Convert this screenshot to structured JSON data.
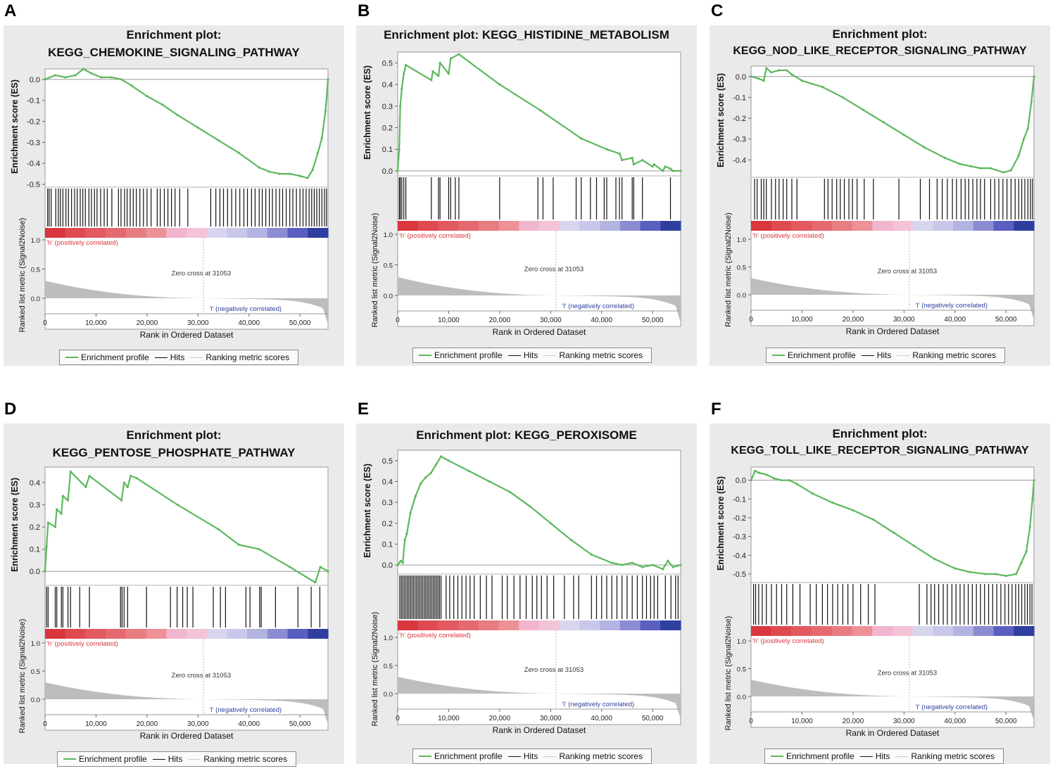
{
  "figure": {
    "x_axis_label": "Rank in Ordered Dataset",
    "es_axis_label": "Enrichment score (ES)",
    "metric_axis_label": "Ranked list metric (Signal2Noise)",
    "pos_label": "'h' (positively correlated)",
    "neg_label": "'l' (negatively correlated)",
    "zero_cross_label": "Zero cross at 31053",
    "legend": {
      "profile": "Enrichment profile",
      "hits": "Hits",
      "ranking": "Ranking metric scores"
    },
    "x_ticks": [
      "0",
      "10,000",
      "20,000",
      "30,000",
      "40,000",
      "50,000"
    ],
    "metric_ticks": [
      "1.0",
      "0.5",
      "0.0"
    ],
    "colors": {
      "profile": "#5cb85c",
      "hits": "#111111",
      "metric": "#bdbdbd",
      "pos": "#d9363e",
      "neg": "#2e3fa0"
    }
  },
  "chart_data": [
    {
      "panel_label": "A",
      "type": "line",
      "title_line1": "Enrichment plot:",
      "title_line2": "KEGG_CHEMOKINE_SIGNALING_PATHWAY",
      "xlabel": "Rank in Ordered Dataset",
      "ylabel": "Enrichment score (ES)",
      "xlim": [
        0,
        55500
      ],
      "ylim": [
        -0.5,
        0.05
      ],
      "y_ticks": [
        "0.0",
        "-0.1",
        "-0.2",
        "-0.3",
        "-0.4",
        "-0.5"
      ],
      "y_tick_values": [
        0,
        -0.1,
        -0.2,
        -0.3,
        -0.4,
        -0.5
      ],
      "x": [
        0,
        2000,
        4000,
        6000,
        7500,
        9000,
        11000,
        13000,
        15000,
        17000,
        20000,
        23000,
        26000,
        30000,
        34000,
        38000,
        42000,
        44000,
        46000,
        48000,
        50000,
        51500,
        52500,
        53500,
        54300,
        55000,
        55500
      ],
      "y": [
        0.0,
        0.02,
        0.01,
        0.02,
        0.05,
        0.03,
        0.01,
        0.01,
        0.0,
        -0.03,
        -0.08,
        -0.12,
        -0.17,
        -0.23,
        -0.29,
        -0.35,
        -0.42,
        -0.44,
        -0.45,
        -0.45,
        -0.46,
        -0.47,
        -0.43,
        -0.35,
        -0.28,
        -0.15,
        0.0
      ],
      "hit_ranks": [
        500,
        800,
        1200,
        2100,
        2600,
        3000,
        3500,
        4100,
        4600,
        5200,
        5800,
        6300,
        6900,
        7400,
        7900,
        8600,
        9100,
        9700,
        10200,
        10900,
        11600,
        12200,
        13100,
        14400,
        14900,
        15600,
        16100,
        16700,
        17300,
        17900,
        18600,
        19300,
        20000,
        20800,
        22000,
        22600,
        23400,
        24100,
        24800,
        25500,
        26400,
        28000,
        32500,
        33500,
        34300,
        35000,
        35800,
        36600,
        37400,
        38200,
        39000,
        39700,
        40500,
        41200,
        42000,
        42600,
        43300,
        44000,
        44600,
        45300,
        46000,
        46600,
        47300,
        48000,
        48600,
        49300,
        50000,
        50600,
        51200,
        51800,
        52300,
        52800,
        53300,
        53800,
        54300,
        54800,
        55200
      ]
    },
    {
      "panel_label": "B",
      "type": "line",
      "title_line1": "Enrichment plot: KEGG_HISTIDINE_METABOLISM",
      "title_line2": "",
      "xlabel": "Rank in Ordered Dataset",
      "ylabel": "Enrichment score (ES)",
      "xlim": [
        0,
        55500
      ],
      "ylim": [
        -0.01,
        0.55
      ],
      "y_ticks": [
        "0.5",
        "0.4",
        "0.3",
        "0.2",
        "0.1",
        "0.0"
      ],
      "y_tick_values": [
        0.5,
        0.4,
        0.3,
        0.2,
        0.1,
        0
      ],
      "x": [
        0,
        300,
        500,
        800,
        1200,
        1600,
        6600,
        6900,
        8000,
        8300,
        10000,
        10400,
        12000,
        20000,
        28000,
        36000,
        41000,
        43500,
        44000,
        46000,
        46300,
        48000,
        50000,
        50300,
        52000,
        52500,
        53500,
        54000,
        55500
      ],
      "y": [
        0.0,
        0.1,
        0.3,
        0.38,
        0.45,
        0.49,
        0.42,
        0.46,
        0.44,
        0.5,
        0.45,
        0.52,
        0.54,
        0.4,
        0.28,
        0.15,
        0.1,
        0.08,
        0.05,
        0.06,
        0.03,
        0.05,
        0.02,
        0.03,
        0.0,
        0.02,
        0.01,
        0.0,
        0.0
      ],
      "hit_ranks": [
        300,
        500,
        800,
        1200,
        1600,
        6600,
        8000,
        8300,
        10000,
        10400,
        11300,
        12000,
        20000,
        27500,
        28500,
        30500,
        35000,
        36000,
        37800,
        39000,
        40500,
        41000,
        42800,
        43500,
        44000,
        46000,
        46300,
        48000,
        53500
      ]
    },
    {
      "panel_label": "C",
      "type": "line",
      "title_line1": "Enrichment plot:",
      "title_line2": "KEGG_NOD_LIKE_RECEPTOR_SIGNALING_PATHWAY",
      "xlabel": "Rank in Ordered Dataset",
      "ylabel": "Enrichment score (ES)",
      "xlim": [
        0,
        55500
      ],
      "ylim": [
        -0.47,
        0.05
      ],
      "y_ticks": [
        "0.0",
        "-0.1",
        "-0.2",
        "-0.3",
        "-0.4"
      ],
      "y_tick_values": [
        0,
        -0.1,
        -0.2,
        -0.3,
        -0.4
      ],
      "x": [
        0,
        1500,
        2500,
        3000,
        4000,
        5500,
        7000,
        8000,
        10000,
        14000,
        18000,
        22000,
        26000,
        30000,
        34000,
        38000,
        41000,
        43000,
        45000,
        47000,
        49500,
        51000,
        52500,
        53500,
        54300,
        55000,
        55500
      ],
      "y": [
        0.0,
        -0.01,
        -0.02,
        0.04,
        0.02,
        0.03,
        0.03,
        0.01,
        -0.02,
        -0.05,
        -0.1,
        -0.16,
        -0.22,
        -0.28,
        -0.34,
        -0.39,
        -0.42,
        -0.43,
        -0.44,
        -0.44,
        -0.46,
        -0.45,
        -0.38,
        -0.3,
        -0.25,
        -0.12,
        0.0
      ],
      "hit_ranks": [
        700,
        1200,
        2000,
        2500,
        3000,
        4000,
        4800,
        5500,
        6300,
        7000,
        8000,
        9000,
        14400,
        15100,
        15900,
        16800,
        17500,
        18300,
        19200,
        19900,
        20800,
        22200,
        24000,
        29000,
        33200,
        35000,
        36500,
        37500,
        38500,
        39500,
        40300,
        41200,
        42000,
        42700,
        43500,
        44300,
        45000,
        45800,
        47000,
        47800,
        48600,
        49400,
        50200,
        51000,
        51800,
        52500,
        53100,
        53700,
        54300,
        54800,
        55200
      ]
    },
    {
      "panel_label": "D",
      "type": "line",
      "title_line1": "Enrichment plot:",
      "title_line2": "KEGG_PENTOSE_PHOSPHATE_PATHWAY",
      "xlabel": "Rank in Ordered Dataset",
      "ylabel": "Enrichment score (ES)",
      "xlim": [
        0,
        55500
      ],
      "ylim": [
        -0.05,
        0.47
      ],
      "y_ticks": [
        "0.4",
        "0.3",
        "0.2",
        "0.1",
        "0.0"
      ],
      "y_tick_values": [
        0.4,
        0.3,
        0.2,
        0.1,
        0
      ],
      "x": [
        0,
        300,
        600,
        2000,
        2300,
        3200,
        3500,
        4500,
        5000,
        8000,
        8700,
        15000,
        15500,
        16200,
        16800,
        18000,
        26000,
        34000,
        38000,
        42000,
        48000,
        53000,
        54000,
        55500
      ],
      "y": [
        0.0,
        0.11,
        0.22,
        0.2,
        0.28,
        0.26,
        0.34,
        0.32,
        0.45,
        0.38,
        0.43,
        0.32,
        0.4,
        0.38,
        0.43,
        0.42,
        0.3,
        0.19,
        0.12,
        0.1,
        0.02,
        -0.05,
        0.02,
        0.0
      ],
      "hit_ranks": [
        300,
        600,
        2000,
        2300,
        3200,
        3500,
        4500,
        5000,
        6800,
        8700,
        14800,
        15100,
        15500,
        16200,
        19900,
        24600,
        25900,
        27000,
        27900,
        29000,
        33000,
        34400,
        35400,
        39400,
        40200,
        42100,
        42400,
        45200,
        49600,
        52200,
        53900
      ]
    },
    {
      "panel_label": "E",
      "type": "line",
      "title_line1": "Enrichment plot: KEGG_PEROXISOME",
      "title_line2": "",
      "xlabel": "Rank in Ordered Dataset",
      "ylabel": "Enrichment score (ES)",
      "xlim": [
        0,
        55500
      ],
      "ylim": [
        -0.03,
        0.55
      ],
      "y_ticks": [
        "0.5",
        "0.4",
        "0.3",
        "0.2",
        "0.1",
        "0.0"
      ],
      "y_tick_values": [
        0.5,
        0.4,
        0.3,
        0.2,
        0.1,
        0
      ],
      "x": [
        0,
        600,
        1000,
        1400,
        1800,
        2500,
        3500,
        4500,
        5500,
        6500,
        7500,
        8500,
        10000,
        14000,
        18000,
        22000,
        26000,
        30000,
        34000,
        38000,
        42000,
        44000,
        46000,
        48000,
        50000,
        52000,
        53000,
        54000,
        55500
      ],
      "y": [
        0.0,
        0.02,
        0.01,
        0.12,
        0.15,
        0.25,
        0.33,
        0.39,
        0.42,
        0.44,
        0.48,
        0.52,
        0.5,
        0.45,
        0.4,
        0.35,
        0.28,
        0.2,
        0.12,
        0.05,
        0.01,
        0.0,
        0.01,
        -0.01,
        0.0,
        -0.02,
        0.02,
        -0.01,
        0.0
      ],
      "hit_ranks": [
        400,
        700,
        1000,
        1300,
        1600,
        1900,
        2200,
        2500,
        2800,
        3100,
        3400,
        3700,
        4000,
        4300,
        4600,
        4900,
        5200,
        5500,
        5800,
        6100,
        6400,
        6700,
        7000,
        7300,
        7600,
        7900,
        8200,
        8500,
        9500,
        10200,
        11000,
        11800,
        12600,
        13400,
        14200,
        15000,
        16200,
        17400,
        18500,
        20500,
        21500,
        22800,
        24000,
        25200,
        26400,
        27300,
        28200,
        29300,
        30600,
        32700,
        34500,
        35500,
        38000,
        39000,
        40000,
        41000,
        42000,
        43000,
        44000,
        45000,
        46000,
        47000,
        48000,
        48800,
        49600,
        50300,
        51000,
        52500,
        53600,
        54500,
        55000
      ]
    },
    {
      "panel_label": "F",
      "type": "line",
      "title_line1": "Enrichment plot:",
      "title_line2": "KEGG_TOLL_LIKE_RECEPTOR_SIGNALING_PATHWAY",
      "xlabel": "Rank in Ordered Dataset",
      "ylabel": "Enrichment score (ES)",
      "xlim": [
        0,
        55500
      ],
      "ylim": [
        -0.53,
        0.07
      ],
      "y_ticks": [
        "0.0",
        "-0.1",
        "-0.2",
        "-0.3",
        "-0.4",
        "-0.5"
      ],
      "y_tick_values": [
        0,
        -0.1,
        -0.2,
        -0.3,
        -0.4,
        -0.5
      ],
      "x": [
        0,
        800,
        1500,
        3000,
        4500,
        6000,
        7500,
        9000,
        12000,
        16000,
        20000,
        24000,
        28000,
        32000,
        36000,
        40000,
        43000,
        46000,
        48000,
        50000,
        52000,
        53000,
        54000,
        54700,
        55200,
        55500
      ],
      "y": [
        0.0,
        0.05,
        0.04,
        0.03,
        0.01,
        0.0,
        0.0,
        -0.02,
        -0.07,
        -0.12,
        -0.16,
        -0.21,
        -0.28,
        -0.35,
        -0.42,
        -0.47,
        -0.49,
        -0.5,
        -0.5,
        -0.51,
        -0.5,
        -0.44,
        -0.38,
        -0.25,
        -0.1,
        0.0
      ],
      "hit_ranks": [
        500,
        900,
        1500,
        2200,
        3000,
        4000,
        5000,
        6000,
        7000,
        8200,
        9600,
        11600,
        12800,
        14000,
        15000,
        16000,
        17000,
        18000,
        19000,
        20000,
        21500,
        23000,
        24300,
        33000,
        34500,
        35300,
        36000,
        36800,
        37700,
        38500,
        39400,
        40200,
        41000,
        41800,
        42600,
        43400,
        44200,
        45000,
        45800,
        46600,
        47400,
        48200,
        49000,
        49800,
        50500,
        51200,
        51900,
        52500,
        53100,
        53700,
        54200,
        54700,
        55100
      ]
    }
  ]
}
